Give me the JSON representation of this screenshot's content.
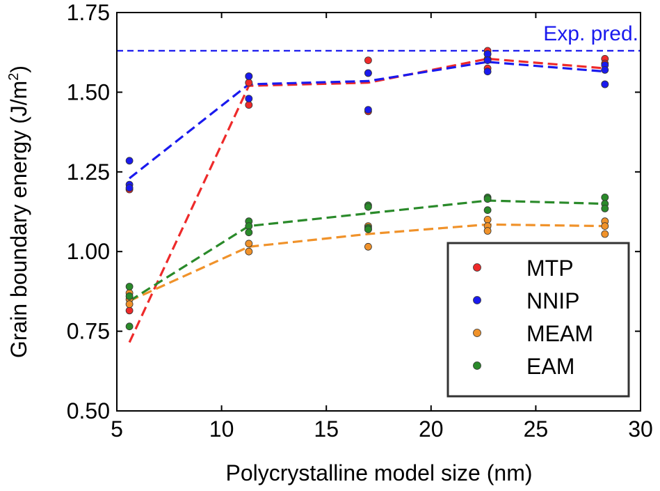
{
  "chart_data": {
    "type": "scatter",
    "title": "",
    "xlabel": "Polycrystalline model size (nm)",
    "ylabel_main": "Grain boundary energy (J/m",
    "ylabel_sup": "2",
    "ylabel_close": ")",
    "xlim": [
      5,
      30
    ],
    "ylim": [
      0.5,
      1.75
    ],
    "xticks": [
      5,
      10,
      15,
      20,
      25,
      30
    ],
    "xtick_labels": [
      "5",
      "10",
      "15",
      "20",
      "25",
      "30"
    ],
    "yticks": [
      0.5,
      0.75,
      1.0,
      1.25,
      1.5,
      1.75
    ],
    "ytick_labels": [
      "0.50",
      "0.75",
      "1.00",
      "1.25",
      "1.50",
      "1.75"
    ],
    "reference_line": {
      "y": 1.63,
      "label": "Exp. pred.",
      "color": "#1a1aee"
    },
    "legend_position": "bottom-right",
    "series": [
      {
        "name": "MTP",
        "color": "#ee2a2a",
        "points": [
          [
            5.6,
            1.195
          ],
          [
            5.6,
            0.815
          ],
          [
            11.3,
            1.55
          ],
          [
            11.3,
            1.53
          ],
          [
            11.3,
            1.46
          ],
          [
            17,
            1.6
          ],
          [
            17,
            1.56
          ],
          [
            17,
            1.44
          ],
          [
            22.7,
            1.63
          ],
          [
            22.7,
            1.62
          ],
          [
            22.7,
            1.605
          ],
          [
            22.7,
            1.575
          ],
          [
            28.3,
            1.605
          ],
          [
            28.3,
            1.59
          ],
          [
            28.3,
            1.525
          ]
        ],
        "trend": [
          [
            5.6,
            0.715
          ],
          [
            11.3,
            1.52
          ],
          [
            17,
            1.53
          ],
          [
            22.7,
            1.605
          ],
          [
            28.3,
            1.575
          ]
        ]
      },
      {
        "name": "NNIP",
        "color": "#1a1aee",
        "points": [
          [
            5.6,
            1.285
          ],
          [
            5.6,
            1.21
          ],
          [
            5.6,
            1.2
          ],
          [
            11.3,
            1.55
          ],
          [
            11.3,
            1.48
          ],
          [
            17,
            1.56
          ],
          [
            17,
            1.445
          ],
          [
            22.7,
            1.62
          ],
          [
            22.7,
            1.6
          ],
          [
            22.7,
            1.565
          ],
          [
            28.3,
            1.585
          ],
          [
            28.3,
            1.57
          ],
          [
            28.3,
            1.525
          ]
        ],
        "trend": [
          [
            5.6,
            1.23
          ],
          [
            11.3,
            1.525
          ],
          [
            17,
            1.535
          ],
          [
            22.7,
            1.595
          ],
          [
            28.3,
            1.565
          ]
        ]
      },
      {
        "name": "MEAM",
        "color": "#f0922a",
        "points": [
          [
            5.6,
            0.87
          ],
          [
            5.6,
            0.85
          ],
          [
            5.6,
            0.835
          ],
          [
            11.3,
            1.025
          ],
          [
            11.3,
            1.0
          ],
          [
            17,
            1.08
          ],
          [
            17,
            1.07
          ],
          [
            17,
            1.015
          ],
          [
            22.7,
            1.1
          ],
          [
            22.7,
            1.08
          ],
          [
            22.7,
            1.065
          ],
          [
            28.3,
            1.095
          ],
          [
            28.3,
            1.08
          ],
          [
            28.3,
            1.055
          ]
        ],
        "trend": [
          [
            5.6,
            0.845
          ],
          [
            11.3,
            1.015
          ],
          [
            17,
            1.055
          ],
          [
            22.7,
            1.085
          ],
          [
            28.3,
            1.08
          ]
        ]
      },
      {
        "name": "EAM",
        "color": "#2a8a2a",
        "points": [
          [
            5.6,
            0.89
          ],
          [
            5.6,
            0.86
          ],
          [
            5.6,
            0.765
          ],
          [
            11.3,
            1.095
          ],
          [
            11.3,
            1.08
          ],
          [
            11.3,
            1.06
          ],
          [
            17,
            1.145
          ],
          [
            17,
            1.14
          ],
          [
            17,
            1.075
          ],
          [
            17,
            1.07
          ],
          [
            22.7,
            1.17
          ],
          [
            22.7,
            1.165
          ],
          [
            22.7,
            1.13
          ],
          [
            28.3,
            1.17
          ],
          [
            28.3,
            1.15
          ],
          [
            28.3,
            1.135
          ]
        ],
        "trend": [
          [
            5.6,
            0.845
          ],
          [
            11.3,
            1.08
          ],
          [
            17,
            1.12
          ],
          [
            22.7,
            1.16
          ],
          [
            28.3,
            1.15
          ]
        ]
      }
    ]
  }
}
